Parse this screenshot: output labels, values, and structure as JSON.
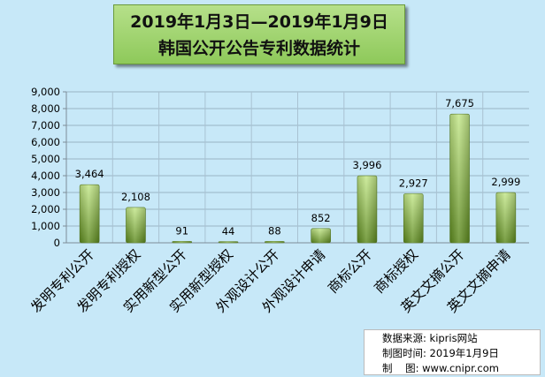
{
  "title": {
    "line1": "2019年1月3日—2019年1月9日",
    "line2": "韩国公开公告专利数据统计"
  },
  "source": {
    "line1_label": "数据来源:",
    "line1_value": "kipris网站",
    "line2_label": "制图时间:",
    "line2_value": "2019年1月9日",
    "line3_label": "制    图:",
    "line3_value": "www.cnipr.com"
  },
  "colors": {
    "background": "#c7e8f8",
    "bar_top": "#b7e07a",
    "bar_bottom": "#5d8a1e",
    "grid": "#9ab3c4"
  },
  "chart_data": {
    "type": "bar",
    "title": "2019年1月3日—2019年1月9日 韩国公开公告专利数据统计",
    "categories": [
      "发明专利公开",
      "发明专利授权",
      "实用新型公开",
      "实用新型授权",
      "外观设计公开",
      "外观设计申请",
      "商标公开",
      "商标授权",
      "英文文摘公开",
      "英文文摘申请"
    ],
    "values": [
      3464,
      2108,
      91,
      44,
      88,
      852,
      3996,
      2927,
      7675,
      2999
    ],
    "data_labels": [
      "3,464",
      "2,108",
      "91",
      "44",
      "88",
      "852",
      "3,996",
      "2,927",
      "7,675",
      "2,999"
    ],
    "ylim": [
      0,
      9000
    ],
    "yticks": [
      "0",
      "1,000",
      "2,000",
      "3,000",
      "4,000",
      "5,000",
      "6,000",
      "7,000",
      "8,000",
      "9,000"
    ],
    "grid": true,
    "legend": "none"
  }
}
